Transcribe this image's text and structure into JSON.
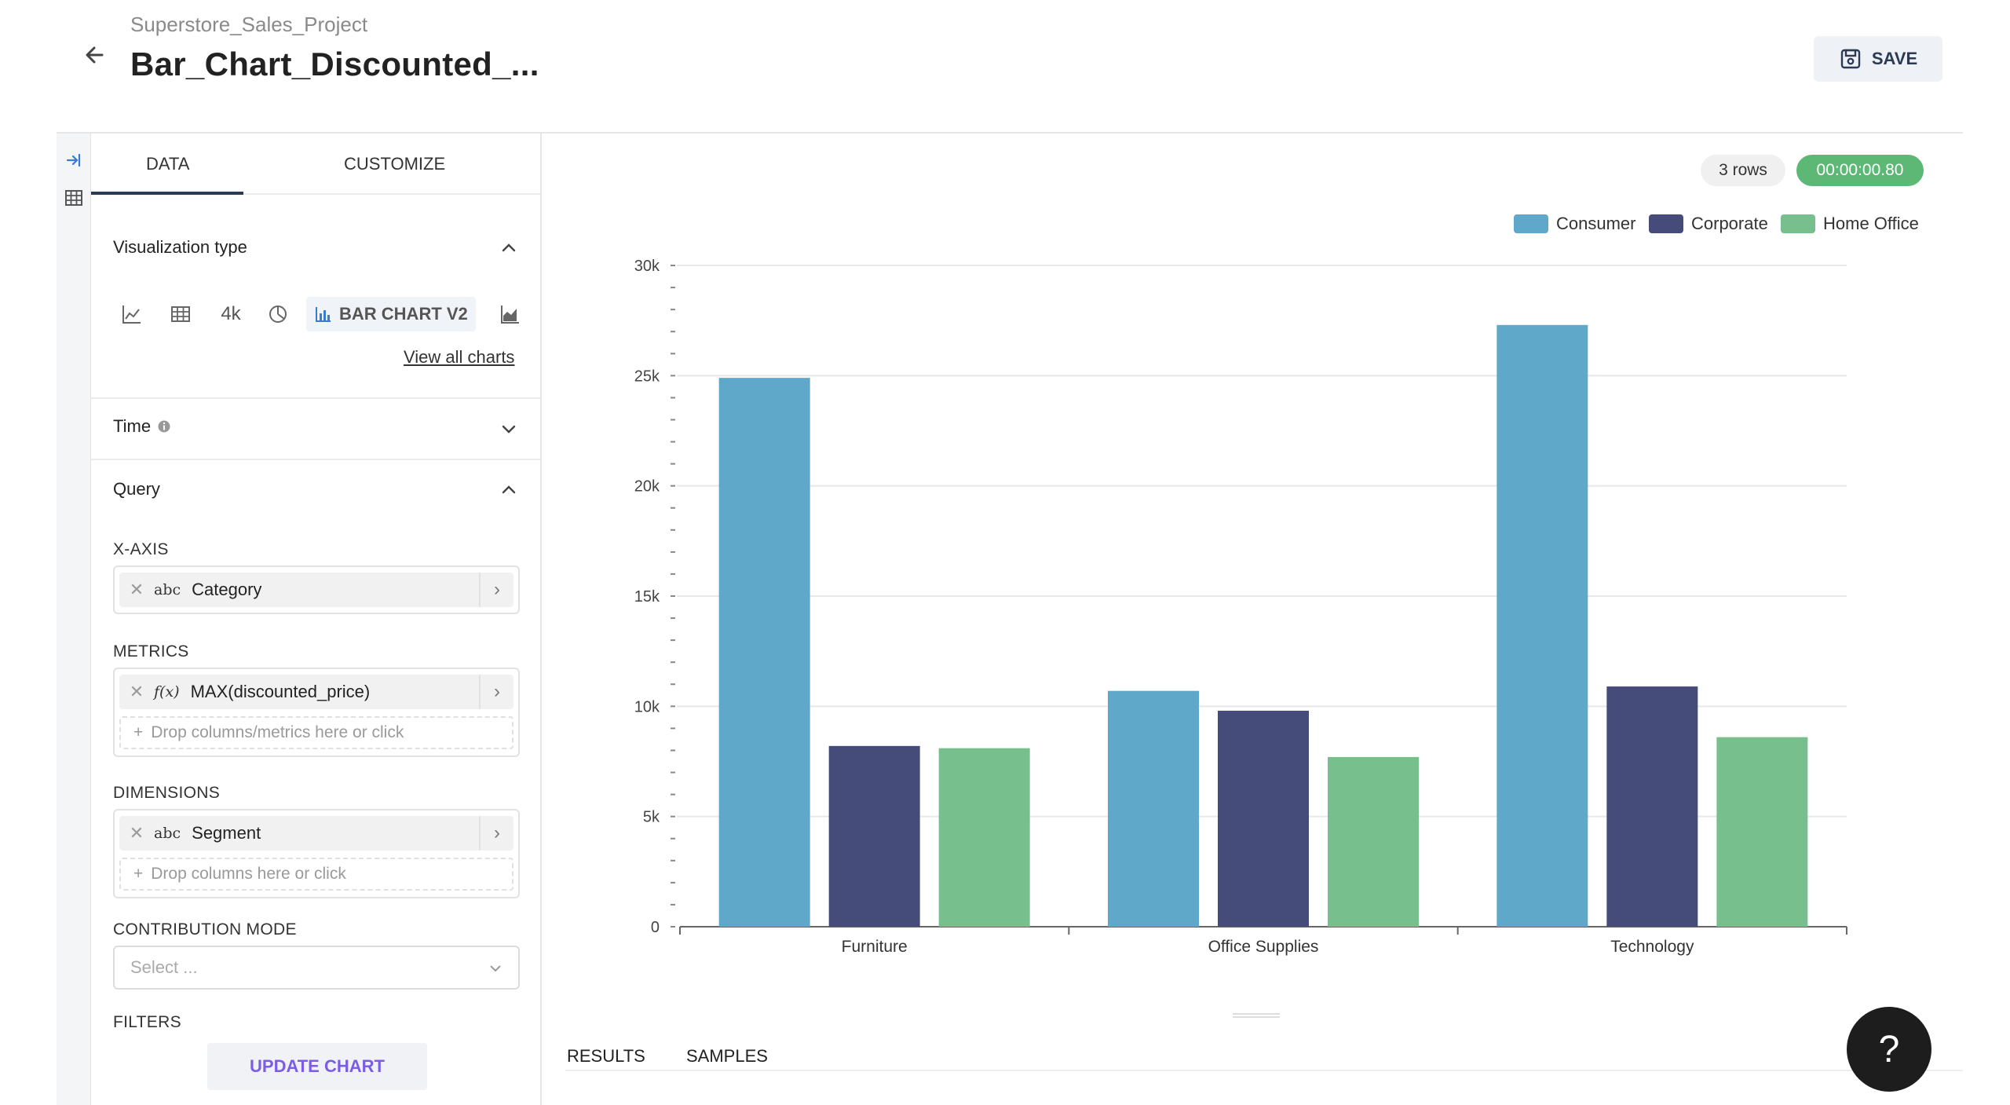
{
  "header": {
    "project": "Superstore_Sales_Project",
    "title": "Bar_Chart_Discounted_...",
    "save_label": "SAVE"
  },
  "tabs": [
    "DATA",
    "CUSTOMIZE"
  ],
  "sections": {
    "visualization": {
      "label": "Visualization type",
      "big_number_label": "4k",
      "selected_label": "BAR CHART V2",
      "view_all": "View all charts"
    },
    "time": {
      "label": "Time"
    },
    "query": {
      "label": "Query"
    }
  },
  "query": {
    "x_axis": {
      "label": "X-AXIS",
      "type": "abc",
      "value": "Category"
    },
    "metrics": {
      "label": "METRICS",
      "type": "f(x)",
      "value": "MAX(discounted_price)",
      "drop_placeholder": "Drop columns/metrics here or click"
    },
    "dimensions": {
      "label": "DIMENSIONS",
      "type": "abc",
      "value": "Segment",
      "drop_placeholder": "Drop columns here or click"
    },
    "contribution": {
      "label": "CONTRIBUTION MODE",
      "placeholder": "Select ..."
    },
    "filters": {
      "label": "FILTERS"
    }
  },
  "update_button": "UPDATE CHART",
  "status": {
    "rows": "3 rows",
    "time": "00:00:00.80"
  },
  "bottom_tabs": [
    "RESULTS",
    "SAMPLES"
  ],
  "help": "?",
  "colors": {
    "consumer": "#5fa8c9",
    "corporate": "#454c7a",
    "home_office": "#77c08e",
    "timer_bg": "#5cb874"
  },
  "chart_data": {
    "type": "bar",
    "categories": [
      "Furniture",
      "Office Supplies",
      "Technology"
    ],
    "series": [
      {
        "name": "Consumer",
        "values": [
          24900,
          10700,
          27300
        ]
      },
      {
        "name": "Corporate",
        "values": [
          8200,
          9800,
          10900
        ]
      },
      {
        "name": "Home Office",
        "values": [
          8100,
          7700,
          8600
        ]
      }
    ],
    "ylim": [
      0,
      30000
    ],
    "yticks": [
      "0",
      "5k",
      "10k",
      "15k",
      "20k",
      "25k",
      "30k"
    ],
    "grid": true,
    "legend": "top-right"
  }
}
